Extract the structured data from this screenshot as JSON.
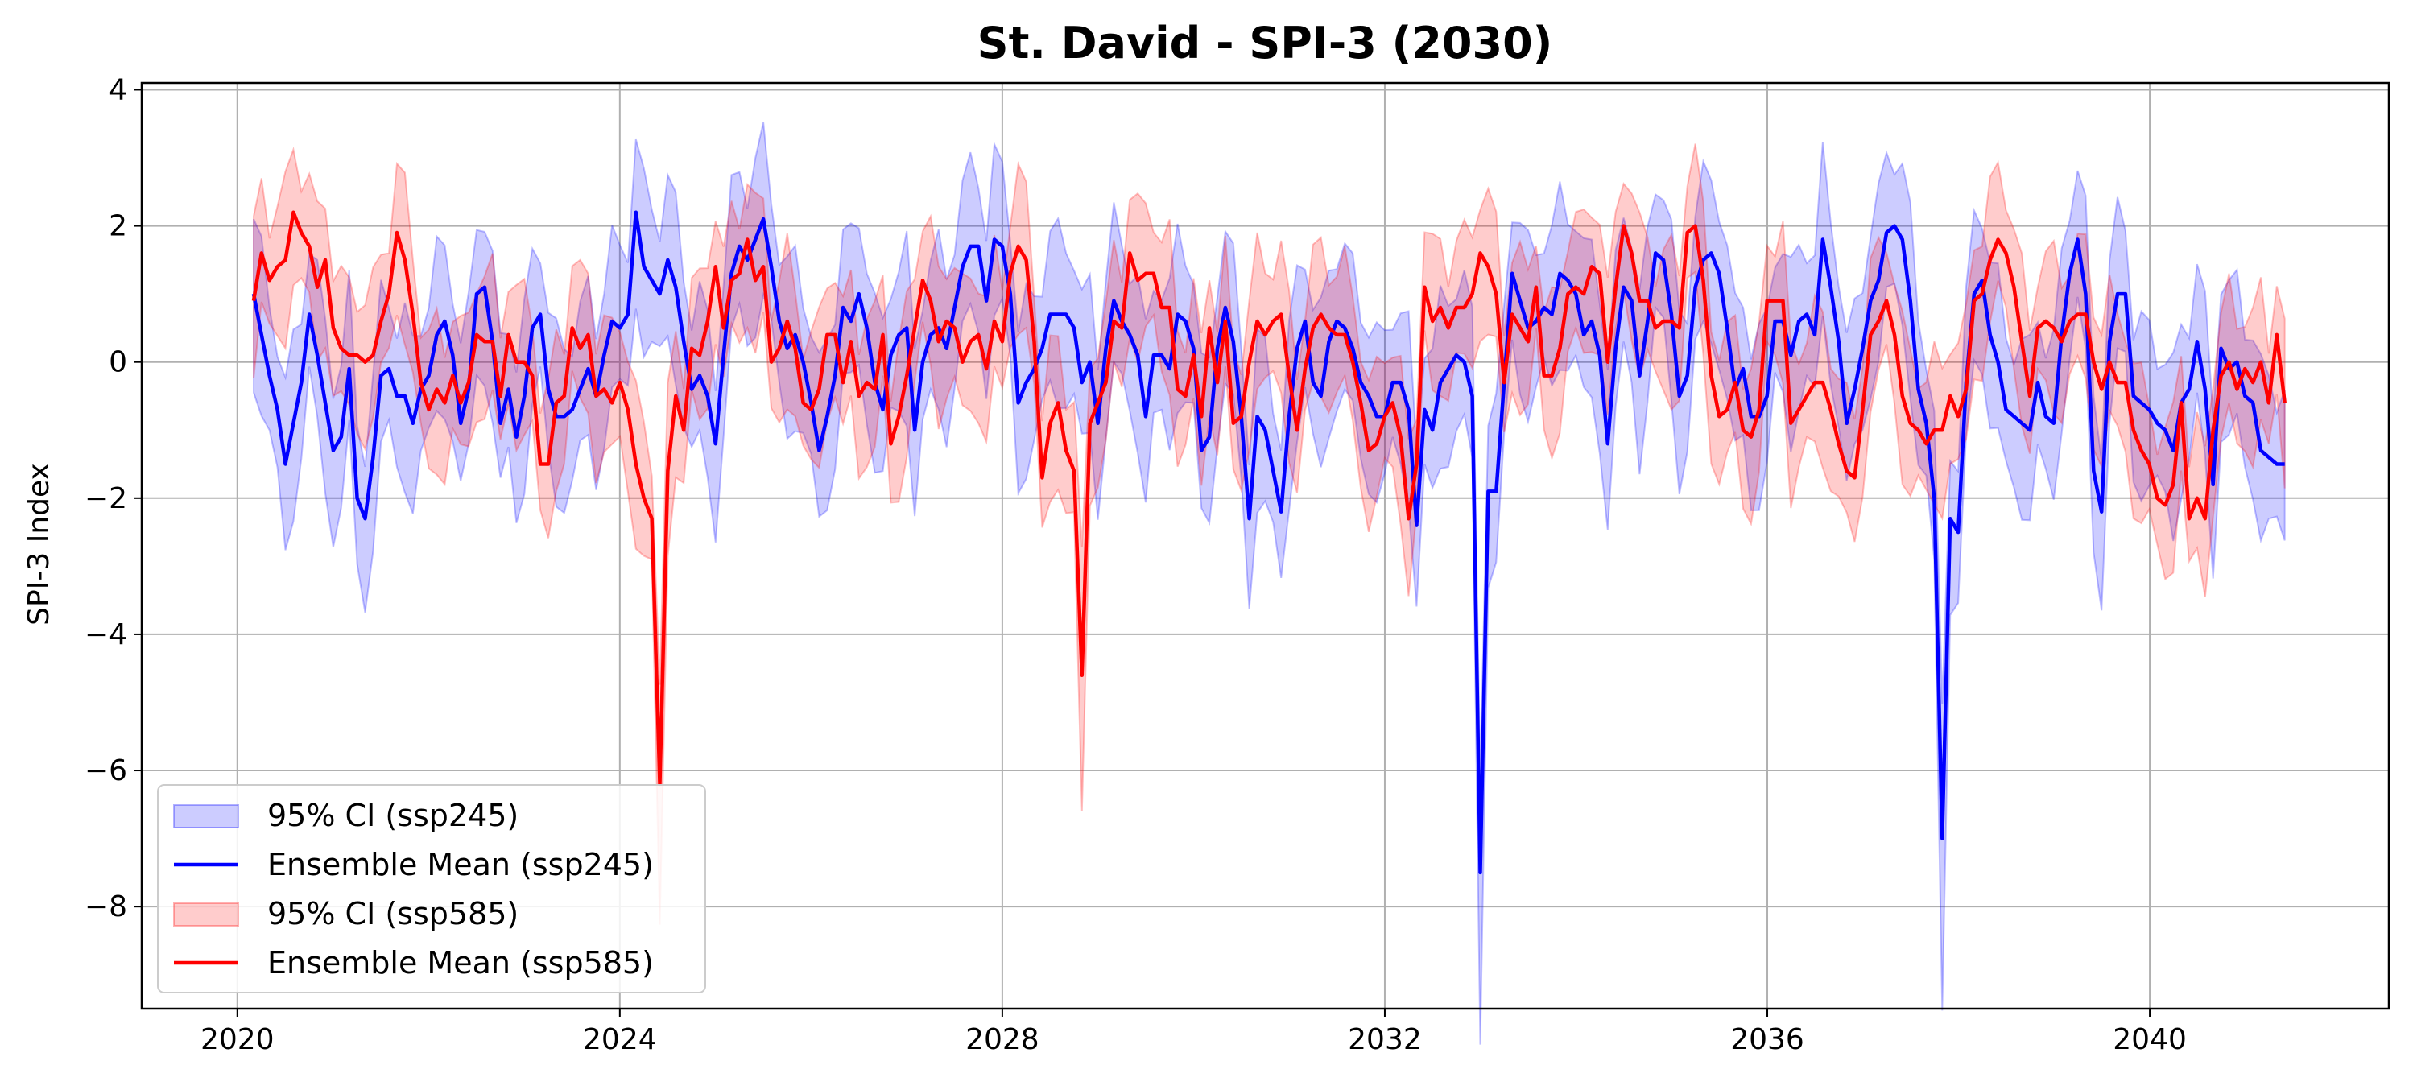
{
  "chart_data": {
    "type": "line",
    "title": "St. David - SPI-3 (2030)",
    "xlabel": "",
    "ylabel": "SPI-3 Index",
    "xlim": [
      2019.0,
      2042.5
    ],
    "ylim": [
      -9.5,
      4.1
    ],
    "xticks": [
      2020,
      2024,
      2028,
      2032,
      2036,
      2040
    ],
    "yticks": [
      4,
      2,
      0,
      -2,
      -4,
      -6,
      -8
    ],
    "ytick_labels": [
      "4",
      "2",
      "0",
      "−2",
      "−4",
      "−6",
      "−8"
    ],
    "grid": true,
    "legend_position": "lower-left",
    "x_start": 2020.17,
    "x_step": 0.0833,
    "series": [
      {
        "name": "Ensemble Mean (ssp245)",
        "color": "#0000ff",
        "ci_name": "95% CI (ssp245)",
        "values": [
          1.0,
          0.4,
          -0.2,
          -0.7,
          -1.5,
          -0.9,
          -0.3,
          0.7,
          0.1,
          -0.6,
          -1.3,
          -1.1,
          -0.1,
          -2.0,
          -2.3,
          -1.4,
          -0.2,
          -0.1,
          -0.5,
          -0.5,
          -0.9,
          -0.4,
          -0.2,
          0.4,
          0.6,
          0.1,
          -0.9,
          -0.4,
          1.0,
          1.1,
          0.3,
          -0.9,
          -0.4,
          -1.1,
          -0.5,
          0.5,
          0.7,
          -0.4,
          -0.8,
          -0.8,
          -0.7,
          -0.4,
          -0.1,
          -0.5,
          0.1,
          0.6,
          0.5,
          0.7,
          2.2,
          1.4,
          1.2,
          1.0,
          1.5,
          1.1,
          0.3,
          -0.4,
          -0.2,
          -0.5,
          -1.2,
          0.1,
          1.3,
          1.7,
          1.5,
          1.8,
          2.1,
          1.4,
          0.6,
          0.2,
          0.4,
          0.0,
          -0.6,
          -1.3,
          -0.8,
          -0.2,
          0.8,
          0.6,
          1.0,
          0.5,
          -0.3,
          -0.7,
          0.1,
          0.4,
          0.5,
          -1.0,
          0.0,
          0.4,
          0.5,
          0.2,
          0.8,
          1.4,
          1.7,
          1.7,
          0.9,
          1.8,
          1.7,
          1.0,
          -0.6,
          -0.3,
          -0.1,
          0.2,
          0.7,
          0.7,
          0.7,
          0.5,
          -0.3,
          0.0,
          -0.9,
          0.2,
          0.9,
          0.6,
          0.4,
          0.1,
          -0.8,
          0.1,
          0.1,
          -0.1,
          0.7,
          0.6,
          0.2,
          -1.3,
          -1.1,
          0.2,
          0.8,
          0.3,
          -0.8,
          -2.3,
          -0.8,
          -1.0,
          -1.6,
          -2.2,
          -0.8,
          0.2,
          0.6,
          -0.3,
          -0.5,
          0.3,
          0.6,
          0.5,
          0.2,
          -0.3,
          -0.5,
          -0.8,
          -0.8,
          -0.3,
          -0.3,
          -0.7,
          -2.4,
          -0.7,
          -1.0,
          -0.3,
          -0.1,
          0.1,
          0.0,
          -0.5,
          -7.5,
          -1.9,
          -1.9,
          -0.3,
          1.3,
          0.9,
          0.5,
          0.6,
          0.8,
          0.7,
          1.3,
          1.2,
          1.0,
          0.4,
          0.6,
          0.1,
          -1.2,
          0.2,
          1.1,
          0.9,
          -0.2,
          0.6,
          1.6,
          1.5,
          0.7,
          -0.5,
          -0.2,
          1.1,
          1.5,
          1.6,
          1.3,
          0.5,
          -0.4,
          -0.1,
          -0.8,
          -0.8,
          -0.5,
          0.6,
          0.6,
          0.1,
          0.6,
          0.7,
          0.4,
          1.8,
          1.1,
          0.3,
          -0.9,
          -0.4,
          0.2,
          0.9,
          1.2,
          1.9,
          2.0,
          1.8,
          0.9,
          -0.4,
          -0.9,
          -2.0,
          -7.0,
          -2.3,
          -2.5,
          -0.3,
          1.0,
          1.2,
          0.4,
          0.0,
          -0.7,
          -0.8,
          -0.9,
          -1.0,
          -0.3,
          -0.8,
          -0.9,
          0.4,
          1.3,
          1.8,
          1.0,
          -1.6,
          -2.2,
          0.3,
          1.0,
          1.0,
          -0.5,
          -0.6,
          -0.7,
          -0.9,
          -1.0,
          -1.3,
          -0.6,
          -0.4,
          0.3,
          -0.4,
          -1.8,
          0.2,
          -0.1,
          0.0,
          -0.5,
          -0.6,
          -1.3,
          -1.4,
          -1.5,
          -1.5
        ]
      },
      {
        "name": "Ensemble Mean (ssp585)",
        "color": "#ff0000",
        "ci_name": "95% CI (ssp585)",
        "values": [
          0.9,
          1.6,
          1.2,
          1.4,
          1.5,
          2.2,
          1.9,
          1.7,
          1.1,
          1.5,
          0.5,
          0.2,
          0.1,
          0.1,
          0.0,
          0.1,
          0.6,
          1.0,
          1.9,
          1.5,
          0.7,
          -0.3,
          -0.7,
          -0.4,
          -0.6,
          -0.2,
          -0.6,
          -0.3,
          0.4,
          0.3,
          0.3,
          -0.5,
          0.4,
          0.0,
          0.0,
          -0.2,
          -1.5,
          -1.5,
          -0.6,
          -0.5,
          0.5,
          0.2,
          0.4,
          -0.5,
          -0.4,
          -0.6,
          -0.3,
          -0.7,
          -1.5,
          -2.0,
          -2.3,
          -6.2,
          -1.6,
          -0.5,
          -1.0,
          0.2,
          0.1,
          0.6,
          1.4,
          0.5,
          1.2,
          1.3,
          1.8,
          1.2,
          1.4,
          0.0,
          0.2,
          0.6,
          0.2,
          -0.6,
          -0.7,
          -0.4,
          0.4,
          0.4,
          -0.3,
          0.3,
          -0.5,
          -0.3,
          -0.4,
          0.4,
          -1.2,
          -0.8,
          -0.2,
          0.5,
          1.2,
          0.9,
          0.3,
          0.6,
          0.5,
          0.0,
          0.3,
          0.4,
          -0.1,
          0.6,
          0.3,
          1.3,
          1.7,
          1.5,
          0.3,
          -1.7,
          -0.9,
          -0.6,
          -1.3,
          -1.6,
          -4.6,
          -0.9,
          -0.6,
          -0.3,
          0.6,
          0.5,
          1.6,
          1.2,
          1.3,
          1.3,
          0.8,
          0.8,
          -0.4,
          -0.5,
          0.1,
          -0.8,
          0.5,
          -0.3,
          0.6,
          -0.9,
          -0.8,
          0.0,
          0.6,
          0.4,
          0.6,
          0.7,
          -0.2,
          -1.0,
          -0.1,
          0.5,
          0.7,
          0.5,
          0.4,
          0.4,
          0.0,
          -0.6,
          -1.3,
          -1.2,
          -0.8,
          -0.6,
          -1.1,
          -2.3,
          -1.5,
          1.1,
          0.6,
          0.8,
          0.5,
          0.8,
          0.8,
          1.0,
          1.6,
          1.4,
          1.0,
          -0.3,
          0.7,
          0.5,
          0.3,
          1.1,
          -0.2,
          -0.2,
          0.2,
          1.0,
          1.1,
          1.0,
          1.4,
          1.3,
          0.0,
          1.1,
          2.0,
          1.6,
          0.9,
          0.9,
          0.5,
          0.6,
          0.6,
          0.5,
          1.9,
          2.0,
          1.2,
          -0.2,
          -0.8,
          -0.7,
          -0.3,
          -1.0,
          -1.1,
          -0.7,
          0.9,
          0.9,
          0.9,
          -0.9,
          -0.7,
          -0.5,
          -0.3,
          -0.3,
          -0.7,
          -1.2,
          -1.6,
          -1.7,
          -0.7,
          0.4,
          0.6,
          0.9,
          0.4,
          -0.5,
          -0.9,
          -1.0,
          -1.2,
          -1.0,
          -1.0,
          -0.5,
          -0.8,
          -0.4,
          0.9,
          1.0,
          1.5,
          1.8,
          1.6,
          1.1,
          0.3,
          -0.5,
          0.5,
          0.6,
          0.5,
          0.3,
          0.6,
          0.7,
          0.7,
          0.0,
          -0.4,
          0.0,
          -0.3,
          -0.3,
          -1.0,
          -1.3,
          -1.5,
          -2.0,
          -2.1,
          -1.8,
          -0.6,
          -2.3,
          -2.0,
          -2.3,
          -1.0,
          -0.2,
          0.0,
          -0.4,
          -0.1,
          -0.3,
          0.0,
          -0.6,
          0.4,
          -0.6
        ]
      }
    ],
    "legend": [
      "95% CI (ssp245)",
      "Ensemble Mean (ssp245)",
      "95% CI (ssp585)",
      "Ensemble Mean (ssp585)"
    ],
    "ci_half_width": {
      "ssp245": 1.1,
      "ssp585": 0.95
    },
    "ci_fill_colors": {
      "ssp245": "#0000ff",
      "ssp585": "#ff0000"
    },
    "ci_opacity": 0.2
  }
}
